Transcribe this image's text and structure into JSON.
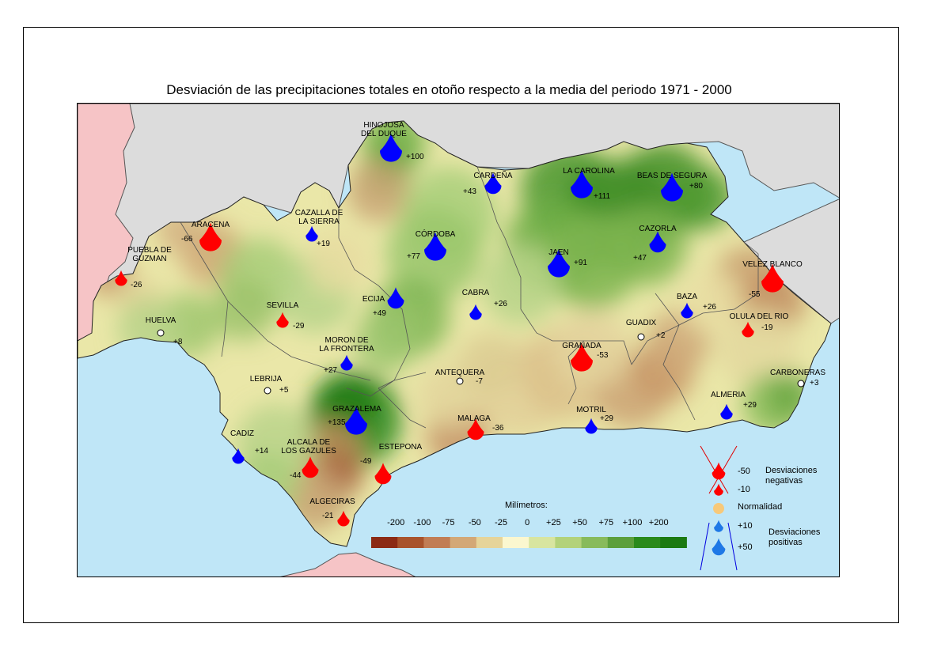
{
  "title": "Desviación de las precipitaciones totales en otoño respecto a la media del periodo 1971 - 2000",
  "colors": {
    "sea": "#bfe6f7",
    "land_outside": "#dcdcdc",
    "portugal": "#f6c4c6",
    "border": "#555555",
    "positive_drop": "#0000ff",
    "negative_drop": "#ff0000",
    "normal_marker": "#f7c97a"
  },
  "stations": [
    {
      "name": "HINOJOSA\nDEL DUQUE",
      "value": "+100",
      "sign": "pos",
      "size": 3
    },
    {
      "name": "CARDEÑA",
      "value": "+43",
      "sign": "pos",
      "size": 2
    },
    {
      "name": "LA CAROLINA",
      "value": "+111",
      "sign": "pos",
      "size": 3
    },
    {
      "name": "BEAS DE SEGURA",
      "value": "+80",
      "sign": "pos",
      "size": 3
    },
    {
      "name": "ARACENA",
      "value": "-66",
      "sign": "neg",
      "size": 3
    },
    {
      "name": "CAZALLA DE\nLA SIERRA",
      "value": "+19",
      "sign": "pos",
      "size": 1
    },
    {
      "name": "CÓRDOBA",
      "value": "+77",
      "sign": "pos",
      "size": 3
    },
    {
      "name": "CAZORLA",
      "value": "+47",
      "sign": "pos",
      "size": 2
    },
    {
      "name": "PUEBLA DE\nGUZMAN",
      "value": "-26",
      "sign": "neg",
      "size": 1
    },
    {
      "name": "JAEN",
      "value": "+91",
      "sign": "pos",
      "size": 3
    },
    {
      "name": "VELEZ BLANCO",
      "value": "-55",
      "sign": "neg",
      "size": 3
    },
    {
      "name": "ECIJA",
      "value": "+49",
      "sign": "pos",
      "size": 2
    },
    {
      "name": "CABRA",
      "value": "+26",
      "sign": "pos",
      "size": 1
    },
    {
      "name": "BAZA",
      "value": "+26",
      "sign": "pos",
      "size": 1
    },
    {
      "name": "SEVILLA",
      "value": "-29",
      "sign": "neg",
      "size": 1
    },
    {
      "name": "OLULA DEL RIO",
      "value": "-19",
      "sign": "neg",
      "size": 1
    },
    {
      "name": "HUELVA",
      "value": "+8",
      "sign": "norm",
      "size": 0
    },
    {
      "name": "GUADIX",
      "value": "+2",
      "sign": "norm",
      "size": 0
    },
    {
      "name": "MORON DE\nLA FRONTERA",
      "value": "+27",
      "sign": "pos",
      "size": 1
    },
    {
      "name": "GRANADA",
      "value": "-53",
      "sign": "neg",
      "size": 3
    },
    {
      "name": "ANTEQUERA",
      "value": "-7",
      "sign": "norm",
      "size": 0
    },
    {
      "name": "LEBRIJA",
      "value": "+5",
      "sign": "norm",
      "size": 0
    },
    {
      "name": "CARBONERAS",
      "value": "+3",
      "sign": "norm",
      "size": 0
    },
    {
      "name": "GRAZALEMA",
      "value": "+135",
      "sign": "pos",
      "size": 3
    },
    {
      "name": "ALMERIA",
      "value": "+29",
      "sign": "pos",
      "size": 1
    },
    {
      "name": "MALAGA",
      "value": "-36",
      "sign": "neg",
      "size": 2
    },
    {
      "name": "MOTRIL",
      "value": "+29",
      "sign": "pos",
      "size": 1
    },
    {
      "name": "CADIZ",
      "value": "+14",
      "sign": "pos",
      "size": 1
    },
    {
      "name": "ALCALA DE\nLOS GAZULES",
      "value": "-44",
      "sign": "neg",
      "size": 2
    },
    {
      "name": "ESTEPONA",
      "value": "-49",
      "sign": "neg",
      "size": 2
    },
    {
      "name": "ALGECIRAS",
      "value": "-21",
      "sign": "neg",
      "size": 1
    }
  ],
  "scale": {
    "title": "Milímetros:",
    "labels": [
      "-200",
      "-100",
      "-75",
      "-50",
      "-25",
      "0",
      "+25",
      "+50",
      "+75",
      "+100",
      "+200"
    ],
    "colors": [
      "#8b2a14",
      "#a8532c",
      "#c17d55",
      "#d3a877",
      "#e6d49a",
      "#fbf7cf",
      "#d8e5a0",
      "#b3d27a",
      "#88bb5c",
      "#5c9f3c",
      "#2a8a1c",
      "#1b7a12"
    ]
  },
  "legend": {
    "items": [
      {
        "label": "-50",
        "sign": "neg",
        "size": 3
      },
      {
        "label": "-10",
        "sign": "neg",
        "size": 1
      },
      {
        "label": "Normalidad",
        "sign": "norm",
        "size": 0
      },
      {
        "label": "+10",
        "sign": "pos",
        "size": 1
      },
      {
        "label": "+50",
        "sign": "pos",
        "size": 3
      }
    ],
    "negative_text": "Desviaciones\nnegativas",
    "positive_text": "Desviaciones\npositivas"
  }
}
